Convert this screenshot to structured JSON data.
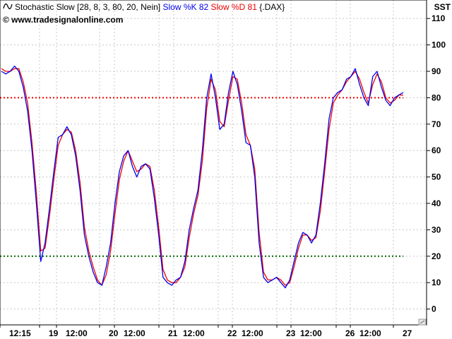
{
  "header": {
    "indicator": "Stochastic Slow [28, 8, 3, 80, 20, Nein]",
    "k_label": "Slow %K 82",
    "d_label": "Slow %D 81",
    "symbol": "{.DAX}",
    "source": "© www.tradesignalonline.com",
    "corner": "SST"
  },
  "colors": {
    "k": "#0000ee",
    "d": "#ee0000",
    "upper_ref": "#ee0000",
    "lower_ref": "#006600",
    "grid": "#c8c8c8"
  },
  "chart_data": {
    "type": "line",
    "title": "Stochastic Slow [28, 8, 3, 80, 20, Nein]",
    "ylim": [
      -6,
      117
    ],
    "yticks": [
      0,
      10,
      20,
      30,
      40,
      50,
      60,
      70,
      80,
      90,
      100,
      110
    ],
    "reference_lines": [
      {
        "value": 80,
        "style": "dotted",
        "color": "#ee0000"
      },
      {
        "value": 20,
        "style": "dotted",
        "color": "#006600"
      }
    ],
    "x_labels": [
      "12:15",
      "19",
      "12:00",
      "20",
      "12:00",
      "21",
      "12:00",
      "22",
      "12:00",
      "23",
      "12:00",
      "26",
      "12:00",
      "27"
    ],
    "grid": true,
    "legend": "top-left",
    "series": [
      {
        "name": "Slow %K 82",
        "color": "#0000ee",
        "values": [
          90,
          89,
          90,
          92,
          90,
          84,
          75,
          60,
          40,
          18,
          25,
          38,
          52,
          65,
          66,
          69,
          66,
          58,
          45,
          28,
          20,
          14,
          10,
          9,
          16,
          25,
          40,
          52,
          58,
          60,
          54,
          50,
          54,
          55,
          53,
          42,
          28,
          12,
          10,
          9,
          11,
          12,
          18,
          30,
          38,
          45,
          60,
          80,
          89,
          80,
          68,
          70,
          82,
          90,
          85,
          75,
          63,
          62,
          50,
          25,
          12,
          10,
          11,
          12,
          10,
          8,
          11,
          18,
          25,
          29,
          28,
          25,
          28,
          40,
          55,
          72,
          80,
          82,
          83,
          87,
          88,
          91,
          85,
          80,
          77,
          88,
          90,
          84,
          79,
          77,
          80,
          81,
          82
        ]
      },
      {
        "name": "Slow %D 81",
        "color": "#ee0000",
        "values": [
          91,
          90,
          90,
          91,
          91,
          86,
          78,
          63,
          44,
          22,
          23,
          35,
          49,
          62,
          66,
          68,
          67,
          60,
          48,
          31,
          22,
          16,
          11,
          9,
          13,
          22,
          36,
          49,
          56,
          60,
          56,
          52,
          53,
          55,
          54,
          45,
          31,
          15,
          11,
          10,
          10,
          12,
          16,
          27,
          36,
          43,
          56,
          76,
          87,
          83,
          71,
          69,
          79,
          88,
          87,
          78,
          66,
          62,
          53,
          29,
          14,
          11,
          11,
          12,
          11,
          9,
          10,
          16,
          23,
          28,
          28,
          26,
          27,
          37,
          52,
          68,
          78,
          81,
          83,
          86,
          88,
          90,
          87,
          82,
          78,
          85,
          89,
          86,
          80,
          78,
          79,
          81,
          81
        ]
      }
    ]
  }
}
